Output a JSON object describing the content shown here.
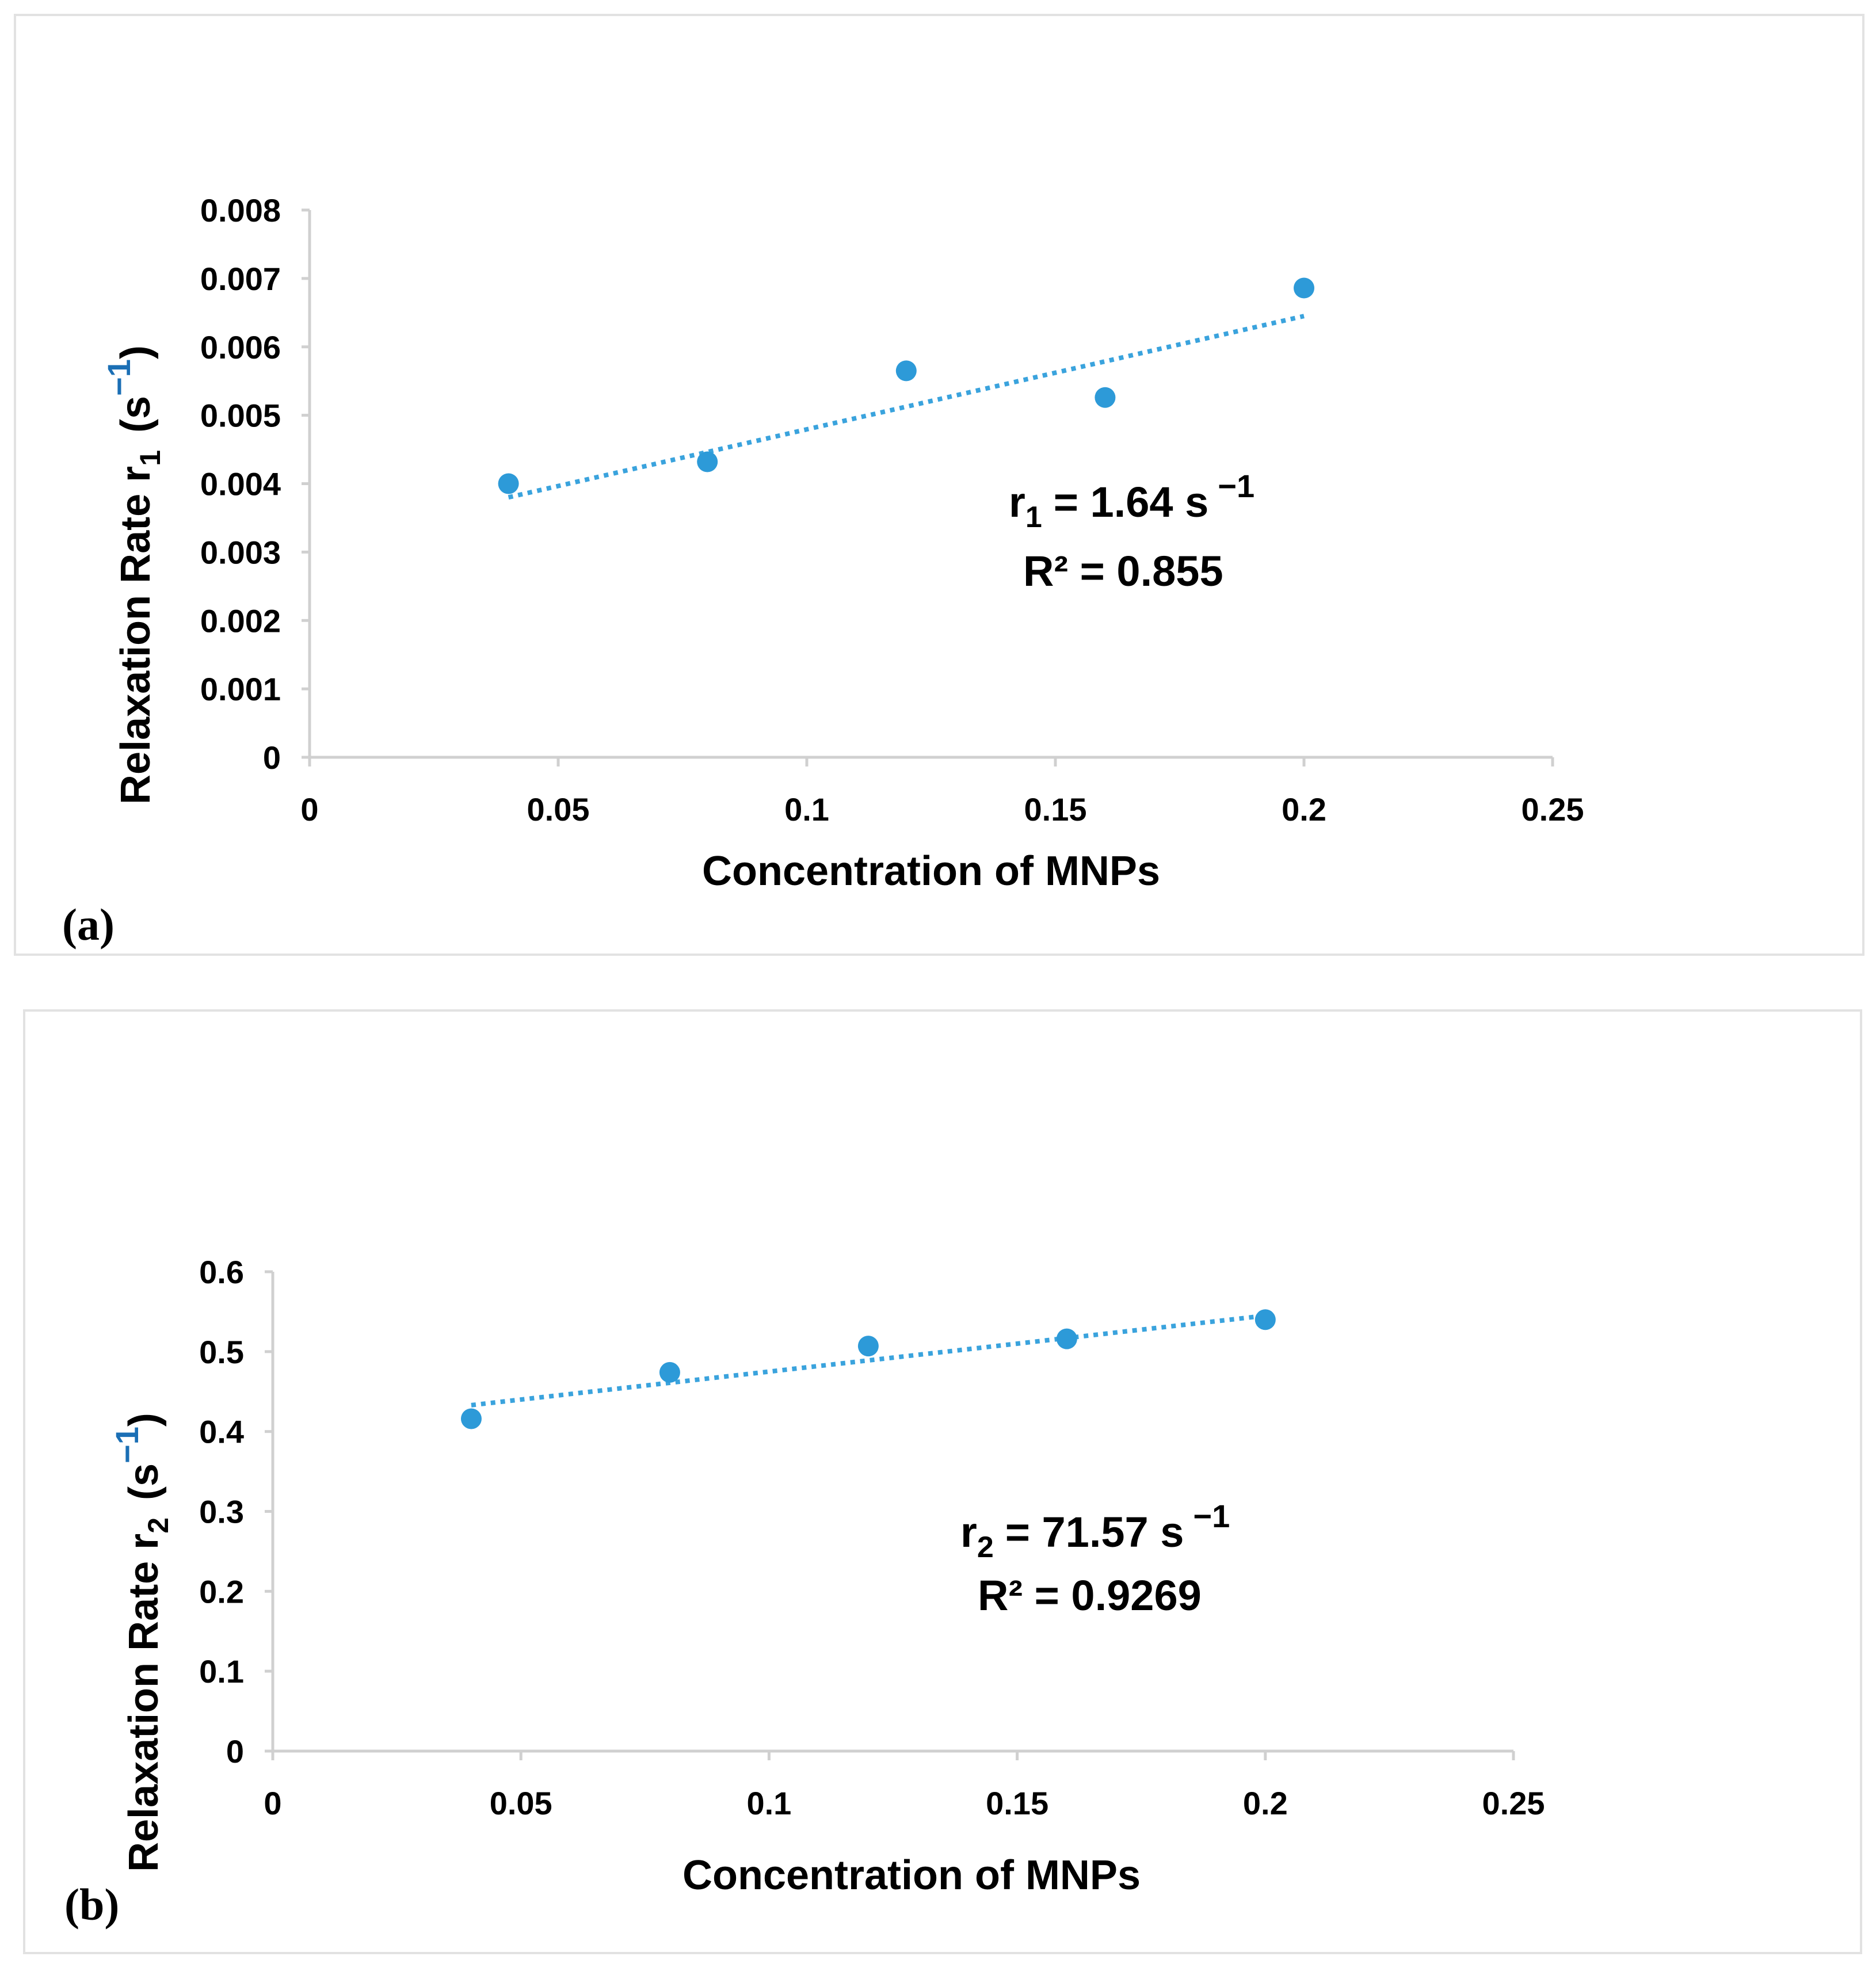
{
  "chart_data": [
    {
      "type": "scatter",
      "panel_label": "(a)",
      "xlabel": "Concentration of MNPs",
      "ylabel_main": "Relaxation Rate r",
      "ylabel_sub": "1",
      "ylabel_unit_open": "(s",
      "ylabel_unit_sup": "−1",
      "ylabel_unit_close": ")",
      "x": [
        0.04,
        0.08,
        0.12,
        0.16,
        0.2
      ],
      "y": [
        0.004,
        0.00432,
        0.00565,
        0.00526,
        0.00686
      ],
      "xlim": [
        0,
        0.25
      ],
      "ylim": [
        0,
        0.008
      ],
      "xticks": [
        "0",
        "0.05",
        "0.1",
        "0.15",
        "0.2",
        "0.25"
      ],
      "yticks": [
        "0",
        "0.001",
        "0.002",
        "0.003",
        "0.004",
        "0.005",
        "0.006",
        "0.007",
        "0.008"
      ],
      "trendline": {
        "x": [
          0.04,
          0.2
        ],
        "y": [
          0.0038,
          0.00645
        ]
      },
      "eq_symbol": "r",
      "eq_sub": "1",
      "eq_value": "= 1.64 s",
      "eq_sup": "−1",
      "r2": "R² = 0.855",
      "colors": {
        "points": "#2d9ad8",
        "trend": "#3aa3dd",
        "unit_sup": "#1b6fb5"
      }
    },
    {
      "type": "scatter",
      "panel_label": "(b)",
      "xlabel": "Concentration of MNPs",
      "ylabel_main": "Relaxation Rate r",
      "ylabel_sub": "2",
      "ylabel_unit_open": "(s",
      "ylabel_unit_sup": "−1",
      "ylabel_unit_close": ")",
      "x": [
        0.04,
        0.08,
        0.12,
        0.16,
        0.2
      ],
      "y": [
        0.416,
        0.474,
        0.507,
        0.516,
        0.54
      ],
      "xlim": [
        0,
        0.25
      ],
      "ylim": [
        0,
        0.6
      ],
      "xticks": [
        "0",
        "0.05",
        "0.1",
        "0.15",
        "0.2",
        "0.25"
      ],
      "yticks": [
        "0",
        "0.1",
        "0.2",
        "0.3",
        "0.4",
        "0.5",
        "0.6"
      ],
      "trendline": {
        "x": [
          0.04,
          0.2
        ],
        "y": [
          0.433,
          0.545
        ]
      },
      "eq_symbol": "r",
      "eq_sub": "2",
      "eq_value": "= 71.57 s",
      "eq_sup": "−1",
      "r2": "R² = 0.9269",
      "colors": {
        "points": "#2d9ad8",
        "trend": "#3aa3dd",
        "unit_sup": "#1b6fb5"
      }
    }
  ]
}
